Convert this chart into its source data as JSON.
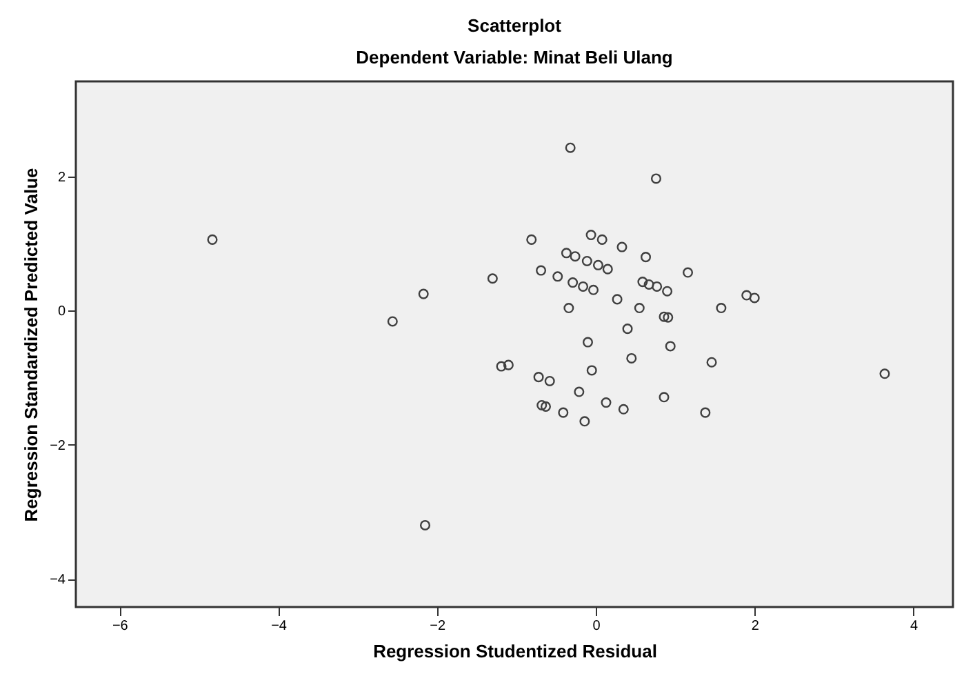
{
  "chart_data": {
    "type": "scatter",
    "title": "Scatterplot",
    "subtitle": "Dependent Variable: Minat Beli Ulang",
    "xlabel": "Regression Studentized Residual",
    "ylabel": "Regression Standardized Predicted Value",
    "xlim": [
      -6.55,
      4.5
    ],
    "ylim": [
      -4.42,
      3.42
    ],
    "xticks": [
      -6,
      -4,
      -2,
      0,
      2,
      4
    ],
    "yticks": [
      -4,
      -2,
      0,
      2
    ],
    "grid": false,
    "marker": "circle",
    "series": [
      {
        "color": "#404040",
        "x": [
          -0.32,
          0.76,
          -0.81,
          -1.3,
          -0.06,
          0.08,
          0.33,
          0.63,
          -0.37,
          -0.26,
          -0.11,
          0.03,
          0.15,
          -0.69,
          -0.48,
          -0.29,
          -0.16,
          -0.03,
          0.59,
          0.67,
          0.77,
          0.9,
          1.16,
          0.27,
          -0.34,
          0.55,
          0.86,
          0.91,
          1.58,
          1.9,
          2.0,
          0.4,
          -0.1,
          0.94,
          0.45,
          1.46,
          -1.19,
          -1.1,
          -0.05,
          -0.72,
          -0.58,
          -0.21,
          0.86,
          -0.68,
          -0.63,
          0.13,
          0.35,
          -0.41,
          1.38,
          -0.14,
          -4.83,
          -2.17,
          -2.56,
          -2.15,
          3.64
        ],
        "values": [
          2.43,
          1.97,
          1.06,
          0.48,
          1.13,
          1.06,
          0.95,
          0.8,
          0.86,
          0.81,
          0.74,
          0.68,
          0.62,
          0.6,
          0.51,
          0.42,
          0.36,
          0.31,
          0.43,
          0.39,
          0.36,
          0.29,
          0.57,
          0.17,
          0.04,
          0.04,
          -0.09,
          -0.1,
          0.04,
          0.23,
          0.19,
          -0.27,
          -0.47,
          -0.53,
          -0.71,
          -0.77,
          -0.83,
          -0.81,
          -0.89,
          -0.99,
          -1.05,
          -1.21,
          -1.29,
          -1.41,
          -1.43,
          -1.37,
          -1.47,
          -1.52,
          -1.52,
          -1.65,
          1.06,
          0.25,
          -0.16,
          -3.2,
          -0.94
        ]
      }
    ]
  }
}
